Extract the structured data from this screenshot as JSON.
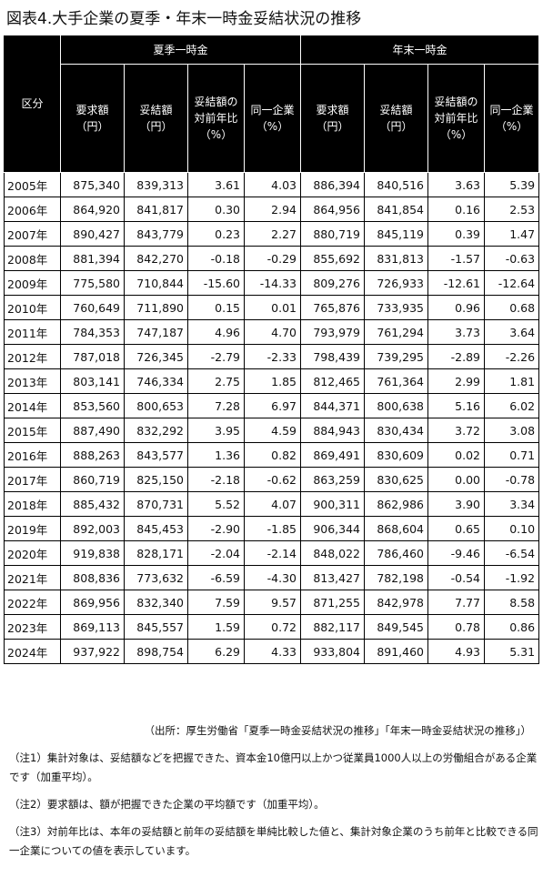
{
  "title": "図表4.大手企業の夏季・年末一時金妥結状況の推移",
  "header": {
    "kubun": "区分",
    "summer_group": "夏季一時金",
    "winter_group": "年末一時金",
    "cols": [
      {
        "line1": "要求額",
        "line2": "（円）"
      },
      {
        "line1": "妥結額",
        "line2": "（円）"
      },
      {
        "line1": "妥結額の",
        "line2": "対前年比",
        "line3": "（%）"
      },
      {
        "line1": "同一企業",
        "line2": "（%）"
      }
    ]
  },
  "rows": [
    [
      "2005年",
      "875,340",
      "839,313",
      "3.61",
      "4.03",
      "886,394",
      "840,516",
      "3.63",
      "5.39"
    ],
    [
      "2006年",
      "864,920",
      "841,817",
      "0.30",
      "2.94",
      "864,956",
      "841,854",
      "0.16",
      "2.53"
    ],
    [
      "2007年",
      "890,427",
      "843,779",
      "0.23",
      "2.27",
      "880,719",
      "845,119",
      "0.39",
      "1.47"
    ],
    [
      "2008年",
      "881,394",
      "842,270",
      "-0.18",
      "-0.29",
      "855,692",
      "831,813",
      "-1.57",
      "-0.63"
    ],
    [
      "2009年",
      "775,580",
      "710,844",
      "-15.60",
      "-14.33",
      "809,276",
      "726,933",
      "-12.61",
      "-12.64"
    ],
    [
      "2010年",
      "760,649",
      "711,890",
      "0.15",
      "0.01",
      "765,876",
      "733,935",
      "0.96",
      "0.68"
    ],
    [
      "2011年",
      "784,353",
      "747,187",
      "4.96",
      "4.70",
      "793,979",
      "761,294",
      "3.73",
      "3.64"
    ],
    [
      "2012年",
      "787,018",
      "726,345",
      "-2.79",
      "-2.33",
      "798,439",
      "739,295",
      "-2.89",
      "-2.26"
    ],
    [
      "2013年",
      "803,141",
      "746,334",
      "2.75",
      "1.85",
      "812,465",
      "761,364",
      "2.99",
      "1.81"
    ],
    [
      "2014年",
      "853,560",
      "800,653",
      "7.28",
      "6.97",
      "844,371",
      "800,638",
      "5.16",
      "6.02"
    ],
    [
      "2015年",
      "887,490",
      "832,292",
      "3.95",
      "4.59",
      "884,943",
      "830,434",
      "3.72",
      "3.08"
    ],
    [
      "2016年",
      "888,263",
      "843,577",
      "1.36",
      "0.82",
      "869,491",
      "830,609",
      "0.02",
      "0.71"
    ],
    [
      "2017年",
      "860,719",
      "825,150",
      "-2.18",
      "-0.62",
      "863,259",
      "830,625",
      "0.00",
      "-0.78"
    ],
    [
      "2018年",
      "885,432",
      "870,731",
      "5.52",
      "4.07",
      "900,311",
      "862,986",
      "3.90",
      "3.34"
    ],
    [
      "2019年",
      "892,003",
      "845,453",
      "-2.90",
      "-1.85",
      "906,344",
      "868,604",
      "0.65",
      "0.10"
    ],
    [
      "2020年",
      "919,838",
      "828,171",
      "-2.04",
      "-2.14",
      "848,022",
      "786,460",
      "-9.46",
      "-6.54"
    ],
    [
      "2021年",
      "808,836",
      "773,632",
      "-6.59",
      "-4.30",
      "813,427",
      "782,198",
      "-0.54",
      "-1.92"
    ],
    [
      "2022年",
      "869,956",
      "832,340",
      "7.59",
      "9.57",
      "871,255",
      "842,978",
      "7.77",
      "8.58"
    ],
    [
      "2023年",
      "869,113",
      "845,557",
      "1.59",
      "0.72",
      "882,117",
      "849,545",
      "0.78",
      "0.86"
    ],
    [
      "2024年",
      "937,922",
      "898,754",
      "6.29",
      "4.33",
      "933,804",
      "891,460",
      "4.93",
      "5.31"
    ]
  ],
  "source": "（出所：厚生労働省「夏季一時金妥結状況の推移」「年末一時金妥結状況の推移」）",
  "notes": [
    "（注1）集計対象は、妥結額などを把握できた、資本金10億円以上かつ従業員1000人以上の労働組合がある企業です（加重平均）。",
    "（注2）要求額は、額が把握できた企業の平均額です（加重平均）。",
    "（注3）対前年比は、本年の妥結額と前年の妥結額を単純比較した値と、集計対象企業のうち前年と比較できる同一企業についての値を表示しています。"
  ]
}
